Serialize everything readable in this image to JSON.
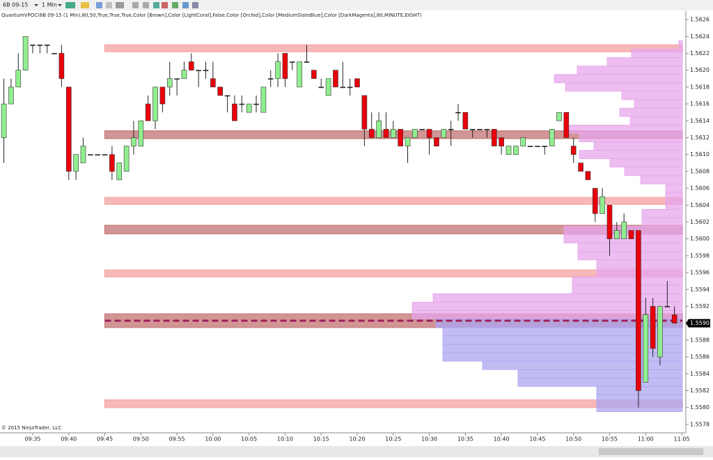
{
  "chart_data": {
    "type": "candlestick",
    "instrument": "6B 09-15",
    "interval": "1 Min",
    "title": "QuantumVPOC(6B 09-15 (1 Min),80,50,True,True,True,Color [Brown],Color [LightCoral],False,Color [Orchid],Color [MediumSlateBlue],Color [DarkMagenta],80,MINUTE,EIGHT)",
    "copyright": "© 2015 NinjaTrader, LLC",
    "up_color": "#90ee90",
    "down_color": "#e8000b",
    "x": [
      "09:31",
      "09:32",
      "09:33",
      "09:34",
      "09:35",
      "09:36",
      "09:37",
      "09:38",
      "09:39",
      "09:40",
      "09:41",
      "09:42",
      "09:43",
      "09:44",
      "09:45",
      "09:46",
      "09:47",
      "09:48",
      "09:49",
      "09:50",
      "09:51",
      "09:52",
      "09:53",
      "09:54",
      "09:55",
      "09:56",
      "09:57",
      "09:58",
      "09:59",
      "10:00",
      "10:01",
      "10:02",
      "10:03",
      "10:04",
      "10:05",
      "10:06",
      "10:07",
      "10:08",
      "10:09",
      "10:10",
      "10:11",
      "10:12",
      "10:13",
      "10:14",
      "10:15",
      "10:16",
      "10:17",
      "10:18",
      "10:19",
      "10:20",
      "10:21",
      "10:22",
      "10:23",
      "10:24",
      "10:25",
      "10:26",
      "10:27",
      "10:28",
      "10:29",
      "10:30",
      "10:31",
      "10:32",
      "10:33",
      "10:34",
      "10:35",
      "10:36",
      "10:37",
      "10:38",
      "10:39",
      "10:40",
      "10:41",
      "10:42",
      "10:43",
      "10:44",
      "10:45",
      "10:46",
      "10:47",
      "10:48",
      "10:49",
      "10:50",
      "10:51",
      "10:52",
      "10:53",
      "10:54",
      "10:55",
      "10:56",
      "10:57",
      "10:58",
      "10:59",
      "11:00",
      "11:01",
      "11:02",
      "11:03",
      "11:04"
    ],
    "open": [
      1.5612,
      1.5616,
      1.5618,
      1.562,
      1.5623,
      1.5623,
      1.5623,
      1.5622,
      1.5622,
      1.5618,
      1.5608,
      1.5609,
      1.561,
      1.561,
      1.561,
      1.561,
      1.5607,
      1.5608,
      1.5611,
      1.5611,
      1.5616,
      1.5614,
      1.5618,
      1.5618,
      1.5619,
      1.5619,
      1.5621,
      1.562,
      1.562,
      1.5619,
      1.5618,
      1.5617,
      1.5616,
      1.5616,
      1.5615,
      1.5616,
      1.5615,
      1.5619,
      1.5619,
      1.5622,
      1.5621,
      1.5618,
      1.5621,
      1.562,
      1.5618,
      1.5617,
      1.562,
      1.5618,
      1.5618,
      1.5619,
      1.5617,
      1.5613,
      1.5612,
      1.5613,
      1.5612,
      1.5613,
      1.5611,
      1.5612,
      1.5613,
      1.5613,
      1.5612,
      1.5612,
      1.5613,
      1.5615,
      1.5615,
      1.5613,
      1.5613,
      1.5613,
      1.5613,
      1.5612,
      1.561,
      1.561,
      1.5611,
      1.5611,
      1.5611,
      1.5611,
      1.5611,
      1.5614,
      1.5615,
      1.5611,
      1.5609,
      1.5608,
      1.5606,
      1.5603,
      1.5604,
      1.56,
      1.56,
      1.5601,
      1.5601,
      1.5583,
      1.5592,
      1.5586,
      1.5592,
      1.5591
    ],
    "high": [
      1.5619,
      1.5619,
      1.5622,
      1.5624,
      1.5623,
      1.5623,
      1.5623,
      1.5622,
      1.5623,
      1.5618,
      1.561,
      1.5612,
      1.561,
      1.561,
      1.561,
      1.5611,
      1.5609,
      1.5611,
      1.5614,
      1.5614,
      1.5617,
      1.5618,
      1.5618,
      1.5621,
      1.5619,
      1.5621,
      1.5622,
      1.562,
      1.5621,
      1.5621,
      1.5618,
      1.5617,
      1.5617,
      1.5617,
      1.5616,
      1.5617,
      1.5618,
      1.562,
      1.5622,
      1.5622,
      1.5621,
      1.5621,
      1.5623,
      1.562,
      1.5619,
      1.5619,
      1.562,
      1.5621,
      1.5619,
      1.5619,
      1.5617,
      1.5615,
      1.5615,
      1.5615,
      1.5614,
      1.5613,
      1.5612,
      1.5613,
      1.5613,
      1.5613,
      1.5612,
      1.5613,
      1.5614,
      1.5616,
      1.5615,
      1.5613,
      1.5613,
      1.5613,
      1.5613,
      1.5612,
      1.5611,
      1.5611,
      1.5612,
      1.5611,
      1.5611,
      1.5611,
      1.5613,
      1.5615,
      1.5615,
      1.5612,
      1.5609,
      1.5608,
      1.5606,
      1.5606,
      1.5604,
      1.5602,
      1.5603,
      1.5601,
      1.5601,
      1.5593,
      1.5593,
      1.5592,
      1.5595,
      1.5592
    ],
    "low": [
      1.5609,
      1.5616,
      1.5618,
      1.562,
      1.5622,
      1.5622,
      1.5622,
      1.5622,
      1.5618,
      1.5607,
      1.5607,
      1.5609,
      1.561,
      1.561,
      1.561,
      1.5607,
      1.5607,
      1.5608,
      1.561,
      1.5611,
      1.5614,
      1.5613,
      1.5615,
      1.5617,
      1.5617,
      1.5619,
      1.562,
      1.5618,
      1.5619,
      1.5618,
      1.5617,
      1.5615,
      1.5614,
      1.5615,
      1.5615,
      1.5615,
      1.5615,
      1.5618,
      1.5618,
      1.5618,
      1.562,
      1.5618,
      1.5621,
      1.5619,
      1.5618,
      1.5617,
      1.5618,
      1.5618,
      1.5617,
      1.5618,
      1.5611,
      1.5612,
      1.5612,
      1.5612,
      1.5612,
      1.5611,
      1.5609,
      1.5612,
      1.5613,
      1.561,
      1.5611,
      1.5612,
      1.5611,
      1.5614,
      1.5613,
      1.5612,
      1.5613,
      1.5612,
      1.5611,
      1.561,
      1.561,
      1.561,
      1.5611,
      1.5611,
      1.5611,
      1.561,
      1.5611,
      1.5614,
      1.5612,
      1.5609,
      1.5608,
      1.5607,
      1.5602,
      1.5603,
      1.5598,
      1.56,
      1.56,
      1.56,
      1.558,
      1.5583,
      1.5586,
      1.5585,
      1.5592,
      1.559
    ],
    "close": [
      1.5616,
      1.5618,
      1.562,
      1.5624,
      1.5623,
      1.5623,
      1.5623,
      1.5622,
      1.5619,
      1.5608,
      1.561,
      1.5611,
      1.561,
      1.561,
      1.561,
      1.5608,
      1.5609,
      1.5611,
      1.5612,
      1.5614,
      1.5614,
      1.5618,
      1.5616,
      1.5619,
      1.5619,
      1.562,
      1.562,
      1.562,
      1.562,
      1.5618,
      1.5617,
      1.5617,
      1.5614,
      1.5616,
      1.5616,
      1.5616,
      1.5618,
      1.5619,
      1.5621,
      1.5619,
      1.5621,
      1.5621,
      1.5621,
      1.5619,
      1.5618,
      1.5619,
      1.5618,
      1.5618,
      1.5618,
      1.5618,
      1.5613,
      1.5612,
      1.5614,
      1.5612,
      1.5613,
      1.5611,
      1.5612,
      1.5613,
      1.5613,
      1.5612,
      1.5611,
      1.5613,
      1.5613,
      1.5615,
      1.5613,
      1.5613,
      1.5613,
      1.5613,
      1.5611,
      1.5611,
      1.5611,
      1.5611,
      1.5612,
      1.5611,
      1.5611,
      1.5611,
      1.5613,
      1.5615,
      1.5612,
      1.561,
      1.5608,
      1.5607,
      1.5603,
      1.5605,
      1.56,
      1.5601,
      1.5602,
      1.56,
      1.5582,
      1.5591,
      1.5587,
      1.5592,
      1.5592,
      1.559
    ],
    "zones": [
      {
        "start": "09:45",
        "low": 1.56222,
        "high": 1.5623,
        "color": "#f5acac"
      },
      {
        "start": "09:45",
        "low": 1.56119,
        "high": 1.56128,
        "color": "#c98282"
      },
      {
        "start": "09:45",
        "low": 1.56041,
        "high": 1.56049,
        "color": "#f5acac"
      },
      {
        "start": "09:45",
        "low": 1.56006,
        "high": 1.56016,
        "color": "#c98282"
      },
      {
        "start": "09:45",
        "low": 1.55955,
        "high": 1.55963,
        "color": "#f5acac"
      },
      {
        "start": "09:45",
        "low": 1.55895,
        "high": 1.55911,
        "color": "#c98282",
        "dashed": true,
        "dash_color": "#a0205a"
      },
      {
        "start": "09:45",
        "low": 1.558,
        "high": 1.55809,
        "color": "#f5acac"
      }
    ],
    "profile": [
      {
        "color": "#e7a6ec",
        "levels": [
          1.5623,
          1.5622,
          1.5621,
          1.562,
          1.5619,
          1.5618,
          1.5617,
          1.5616,
          1.5615,
          1.5614,
          1.5613,
          1.5612,
          1.5611,
          1.561,
          1.5609,
          1.5608,
          1.5607,
          1.5606,
          1.5605,
          1.5604,
          1.5603,
          1.5602,
          1.5601,
          1.56,
          1.5599,
          1.5598,
          1.5597,
          1.5596,
          1.5595,
          1.5594,
          1.5593,
          1.5592,
          1.5591
        ],
        "values": [
          5,
          73,
          108,
          151,
          184,
          168,
          87,
          69,
          90,
          75,
          162,
          148,
          127,
          148,
          104,
          83,
          60,
          24,
          24,
          24,
          58,
          58,
          170,
          170,
          150,
          150,
          123,
          123,
          158,
          158,
          358,
          388,
          388
        ]
      },
      {
        "color": "#aea6f2",
        "levels": [
          1.559,
          1.5589,
          1.5588,
          1.5587,
          1.5586,
          1.5585,
          1.5584,
          1.5583,
          1.5582,
          1.5581,
          1.558
        ],
        "values": [
          354,
          344,
          344,
          344,
          344,
          287,
          236,
          236,
          123,
          123,
          123
        ]
      }
    ],
    "last_price": {
      "value": 1.559,
      "label": "1.5590"
    },
    "xlim": [
      "09:30",
      "11:06"
    ],
    "xticks": [
      "09:35",
      "09:40",
      "09:45",
      "09:50",
      "09:55",
      "10:00",
      "10:05",
      "10:10",
      "10:15",
      "10:20",
      "10:25",
      "10:30",
      "10:35",
      "10:40",
      "10:45",
      "10:50",
      "10:55",
      "11:00",
      "11:05"
    ],
    "ylim": [
      1.5577,
      1.5627
    ],
    "yticks": [
      {
        "value": 1.5578,
        "label": "1.5578"
      },
      {
        "value": 1.558,
        "label": "1.5580"
      },
      {
        "value": 1.5582,
        "label": "1.5582"
      },
      {
        "value": 1.5584,
        "label": "1.5584"
      },
      {
        "value": 1.5586,
        "label": "1.5586"
      },
      {
        "value": 1.5588,
        "label": "1.5588"
      },
      {
        "value": 1.559,
        "label": "1.5590"
      },
      {
        "value": 1.5592,
        "label": "1.5592"
      },
      {
        "value": 1.5594,
        "label": "1.5594"
      },
      {
        "value": 1.5596,
        "label": "1.5596"
      },
      {
        "value": 1.5598,
        "label": "1.5598"
      },
      {
        "value": 1.56,
        "label": "1.5600"
      },
      {
        "value": 1.5602,
        "label": "1.5602"
      },
      {
        "value": 1.5604,
        "label": "1.5604"
      },
      {
        "value": 1.5606,
        "label": "1.5606"
      },
      {
        "value": 1.5608,
        "label": "1.5608"
      },
      {
        "value": 1.561,
        "label": "1.5610"
      },
      {
        "value": 1.5612,
        "label": "1.5612"
      },
      {
        "value": 1.5614,
        "label": "1.5614"
      },
      {
        "value": 1.5616,
        "label": "1.5616"
      },
      {
        "value": 1.5618,
        "label": "1.5618"
      },
      {
        "value": 1.562,
        "label": "1.5620"
      },
      {
        "value": 1.5622,
        "label": "1.5622"
      },
      {
        "value": 1.5624,
        "label": "1.5624"
      },
      {
        "value": 1.5626,
        "label": "1.5626"
      }
    ]
  }
}
